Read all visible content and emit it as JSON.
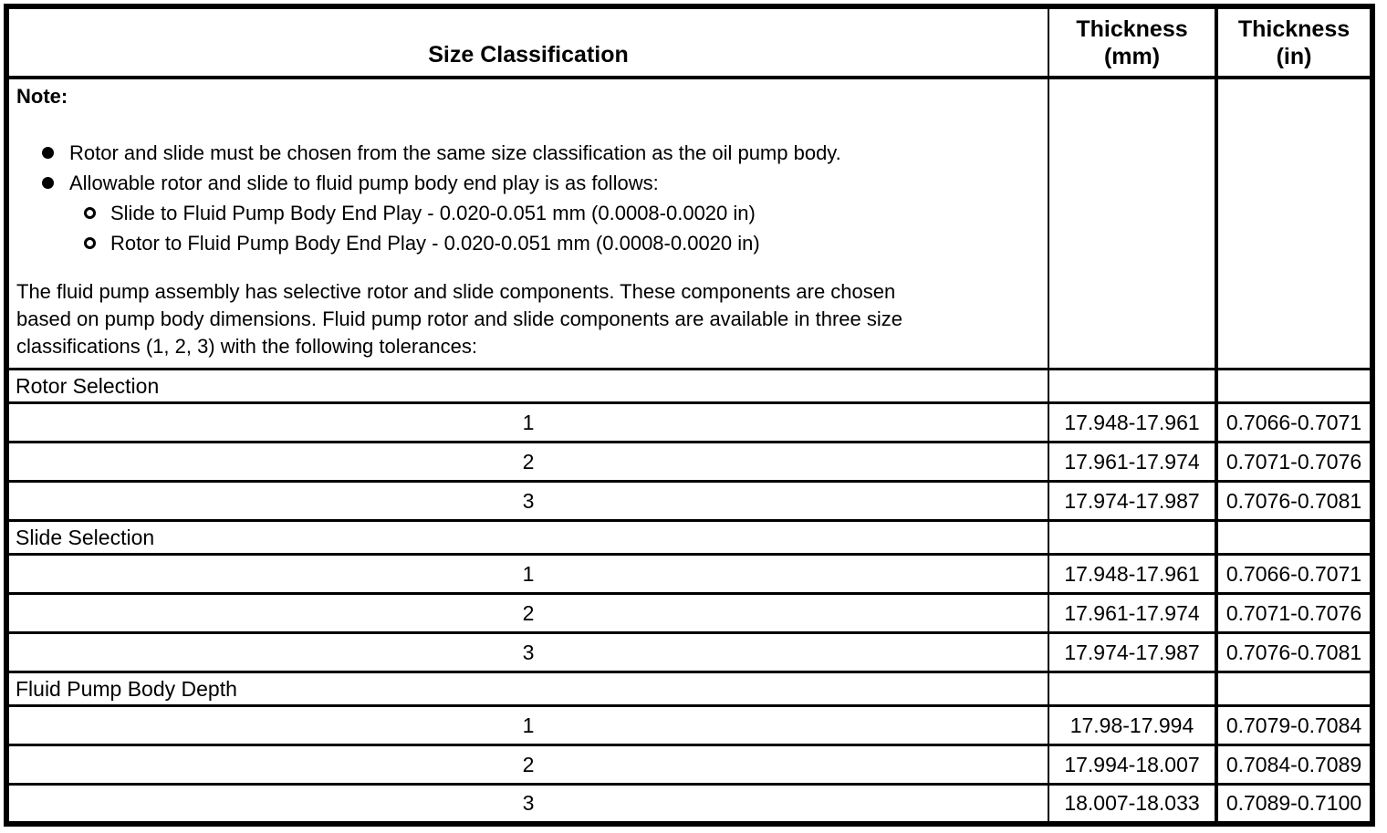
{
  "table": {
    "headers": {
      "size_classification": "Size Classification",
      "thickness_mm": "Thickness\n(mm)",
      "thickness_in": "Thickness\n(in)"
    },
    "note": {
      "title": "Note:",
      "bullets": [
        {
          "text": "Rotor and slide must be chosen from the same size classification as the oil pump body."
        },
        {
          "text": "Allowable rotor and slide to fluid pump body end play is as follows:"
        }
      ],
      "sub_bullets": [
        {
          "text": "Slide to Fluid Pump Body End Play - 0.020-0.051 mm (0.0008-0.0020 in)"
        },
        {
          "text": "Rotor to Fluid Pump Body End Play - 0.020-0.051 mm (0.0008-0.0020 in)"
        }
      ],
      "paragraph": "The fluid pump assembly has selective rotor and slide components. These components are chosen\nbased on pump body dimensions. Fluid pump rotor and slide components are available in three size\nclassifications (1, 2, 3) with the following tolerances:"
    },
    "sections": [
      {
        "label": "Rotor Selection",
        "rows": [
          {
            "size": "1",
            "mm": "17.948-17.961",
            "in": "0.7066-0.7071"
          },
          {
            "size": "2",
            "mm": "17.961-17.974",
            "in": "0.7071-0.7076"
          },
          {
            "size": "3",
            "mm": "17.974-17.987",
            "in": "0.7076-0.7081"
          }
        ]
      },
      {
        "label": "Slide Selection",
        "rows": [
          {
            "size": "1",
            "mm": "17.948-17.961",
            "in": "0.7066-0.7071"
          },
          {
            "size": "2",
            "mm": "17.961-17.974",
            "in": "0.7071-0.7076"
          },
          {
            "size": "3",
            "mm": "17.974-17.987",
            "in": "0.7076-0.7081"
          }
        ]
      },
      {
        "label": "Fluid Pump Body Depth",
        "rows": [
          {
            "size": "1",
            "mm": "17.98-17.994",
            "in": "0.7079-0.7084"
          },
          {
            "size": "2",
            "mm": "17.994-18.007",
            "in": "0.7084-0.7089"
          },
          {
            "size": "3",
            "mm": "18.007-18.033",
            "in": "0.7089-0.7100"
          }
        ]
      }
    ]
  }
}
